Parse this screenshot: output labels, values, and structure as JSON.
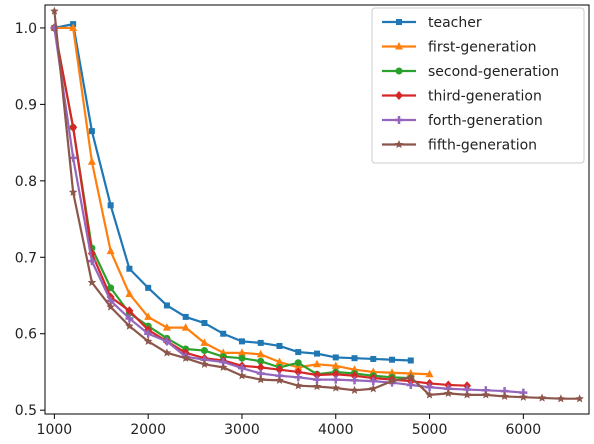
{
  "chart_data": {
    "type": "line",
    "title": "",
    "xlabel": "",
    "ylabel": "",
    "xlim": [
      900,
      6700
    ],
    "ylim": [
      0.495,
      1.03
    ],
    "xticks": [
      1000,
      2000,
      3000,
      4000,
      5000,
      6000
    ],
    "yticks": [
      0.5,
      0.6,
      0.7,
      0.8,
      0.9,
      1.0
    ],
    "xtick_labels": [
      "1000",
      "2000",
      "3000",
      "4000",
      "5000",
      "6000"
    ],
    "ytick_labels": [
      "0.5",
      "0.6",
      "0.7",
      "0.8",
      "0.9",
      "1.0"
    ],
    "grid": false,
    "legend_position": "top-right",
    "series": [
      {
        "name": "teacher",
        "color": "#1f77b4",
        "marker": "square",
        "x": [
          1000,
          1200,
          1400,
          1600,
          1800,
          2000,
          2200,
          2400,
          2600,
          2800,
          3000,
          3200,
          3400,
          3600,
          3800,
          4000,
          4200,
          4400,
          4600,
          4800
        ],
        "y": [
          1.0,
          1.005,
          0.865,
          0.768,
          0.685,
          0.66,
          0.637,
          0.622,
          0.614,
          0.6,
          0.59,
          0.588,
          0.584,
          0.576,
          0.574,
          0.569,
          0.568,
          0.567,
          0.566,
          0.565
        ]
      },
      {
        "name": "first-generation",
        "color": "#ff7f0e",
        "marker": "triangle",
        "x": [
          1000,
          1200,
          1400,
          1600,
          1800,
          2000,
          2200,
          2400,
          2600,
          2800,
          3000,
          3200,
          3400,
          3600,
          3800,
          4000,
          4200,
          4400,
          4600,
          4800,
          5000
        ],
        "y": [
          1.0,
          1.0,
          0.825,
          0.708,
          0.652,
          0.622,
          0.608,
          0.608,
          0.588,
          0.575,
          0.575,
          0.573,
          0.563,
          0.556,
          0.56,
          0.558,
          0.553,
          0.55,
          0.549,
          0.548,
          0.547
        ]
      },
      {
        "name": "second-generation",
        "color": "#2ca02c",
        "marker": "circle",
        "x": [
          1000,
          1200,
          1400,
          1600,
          1800,
          2000,
          2200,
          2400,
          2600,
          2800,
          3000,
          3200,
          3400,
          3600,
          3800,
          4000,
          4200,
          4400,
          4600,
          4800
        ],
        "y": [
          1.0,
          0.87,
          0.712,
          0.66,
          0.627,
          0.61,
          0.594,
          0.58,
          0.578,
          0.57,
          0.568,
          0.564,
          0.556,
          0.562,
          0.547,
          0.55,
          0.548,
          0.545,
          0.543,
          0.542
        ]
      },
      {
        "name": "third-generation",
        "color": "#d62728",
        "marker": "diamond",
        "x": [
          1000,
          1200,
          1400,
          1600,
          1800,
          2000,
          2200,
          2400,
          2600,
          2800,
          3000,
          3200,
          3400,
          3600,
          3800,
          4000,
          4200,
          4400,
          4600,
          4800,
          5000,
          5200,
          5400
        ],
        "y": [
          1.0,
          0.87,
          0.705,
          0.648,
          0.63,
          0.605,
          0.59,
          0.575,
          0.568,
          0.565,
          0.558,
          0.556,
          0.553,
          0.55,
          0.546,
          0.547,
          0.545,
          0.542,
          0.54,
          0.538,
          0.535,
          0.533,
          0.532
        ]
      },
      {
        "name": "forth-generation",
        "color": "#9467bd",
        "marker": "plus",
        "x": [
          1000,
          1200,
          1400,
          1600,
          1800,
          2000,
          2200,
          2400,
          2600,
          2800,
          3000,
          3200,
          3400,
          3600,
          3800,
          4000,
          4200,
          4400,
          4600,
          4800,
          5000,
          5200,
          5400,
          5600,
          5800,
          6000
        ],
        "y": [
          1.0,
          0.83,
          0.695,
          0.643,
          0.62,
          0.6,
          0.59,
          0.57,
          0.566,
          0.563,
          0.555,
          0.548,
          0.545,
          0.543,
          0.54,
          0.54,
          0.539,
          0.538,
          0.536,
          0.533,
          0.53,
          0.528,
          0.527,
          0.526,
          0.525,
          0.523
        ]
      },
      {
        "name": "fifth-generation",
        "color": "#8c564b",
        "marker": "star",
        "x": [
          1000,
          1200,
          1400,
          1600,
          1800,
          2000,
          2200,
          2400,
          2600,
          2800,
          3000,
          3200,
          3400,
          3600,
          3800,
          4000,
          4200,
          4400,
          4600,
          4800,
          5000,
          5200,
          5400,
          5600,
          5800,
          6000,
          6200,
          6400,
          6600
        ],
        "y": [
          1.022,
          0.785,
          0.667,
          0.635,
          0.61,
          0.59,
          0.575,
          0.568,
          0.56,
          0.556,
          0.545,
          0.54,
          0.539,
          0.532,
          0.531,
          0.529,
          0.526,
          0.528,
          0.538,
          0.543,
          0.52,
          0.522,
          0.52,
          0.52,
          0.518,
          0.517,
          0.516,
          0.515,
          0.515
        ]
      }
    ]
  }
}
